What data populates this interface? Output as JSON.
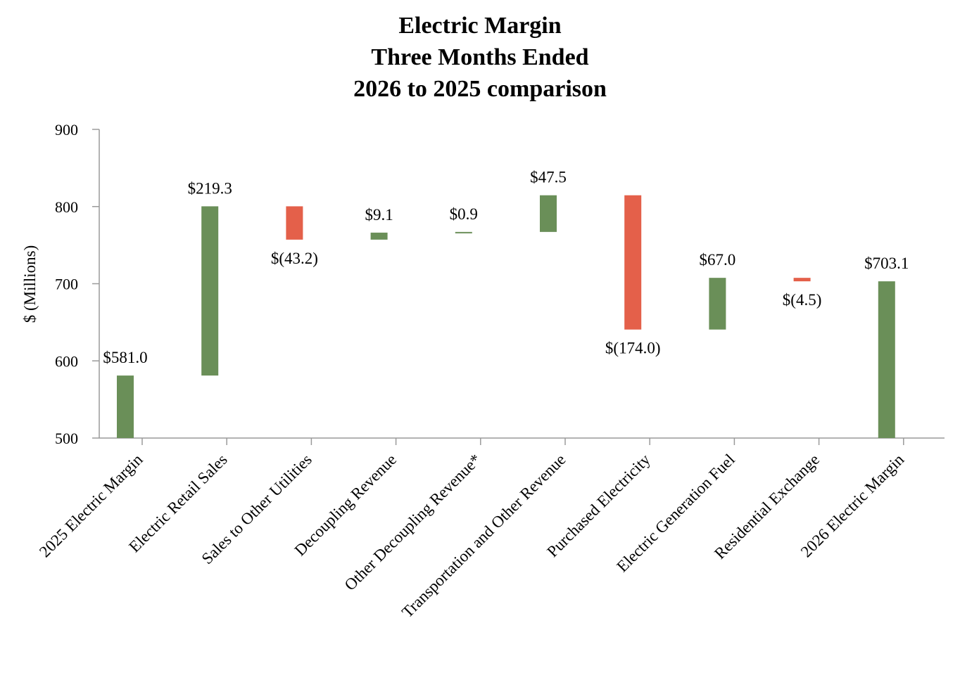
{
  "chart_data": {
    "type": "bar",
    "subtype": "waterfall",
    "title_lines": [
      "Electric Margin",
      "Three Months Ended",
      "2026 to 2025 comparison"
    ],
    "ylabel": "$ (Millions)",
    "xlabel": "",
    "ylim": [
      500,
      900
    ],
    "yticks": [
      500,
      600,
      700,
      800,
      900
    ],
    "grid": false,
    "colors": {
      "increase": "#6a8f58",
      "decrease": "#e4604a",
      "total": "#6a8f58",
      "axis": "#9a9a9a"
    },
    "categories": [
      "2025 Electric Margin",
      "Electric Retail Sales",
      "Sales to Other Utilities",
      "Decoupling Revenue",
      "Other Decoupling Revenue*",
      "Transportation and Other Revenue",
      "Purchased Electricity",
      "Electric Generation Fuel",
      "Residential Exchange",
      "2026 Electric Margin"
    ],
    "values": [
      581.0,
      219.3,
      -43.2,
      9.1,
      0.9,
      47.5,
      -174.0,
      67.0,
      -4.5,
      703.1
    ],
    "bar_kind": [
      "total",
      "increase",
      "decrease",
      "increase",
      "increase",
      "increase",
      "decrease",
      "increase",
      "decrease",
      "total"
    ],
    "data_labels": [
      "$581.0",
      "$219.3",
      "$(43.2)",
      "$9.1",
      "$0.9",
      "$47.5",
      "$(174.0)",
      "$67.0",
      "$(4.5)",
      "$703.1"
    ]
  }
}
